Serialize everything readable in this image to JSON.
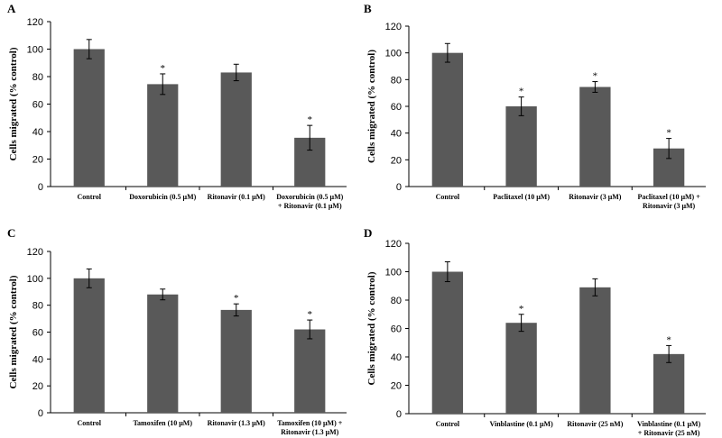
{
  "chart_data": [
    {
      "panel": "A",
      "type": "bar",
      "ylabel": "Cells migrated  (% control)",
      "ylim": [
        0,
        120
      ],
      "yticks": [
        0,
        20,
        40,
        60,
        80,
        100,
        120
      ],
      "categories": [
        [
          "Control"
        ],
        [
          "Doxorubicin (0.5 μM)"
        ],
        [
          "Ritonavir (0.1 μM)"
        ],
        [
          "Doxorubicin (0.5 μM)",
          "+ Ritonavir (0.1 μM)"
        ]
      ],
      "values": [
        100,
        74.5,
        83,
        35.5
      ],
      "errors": [
        7,
        7.5,
        6,
        9
      ],
      "significant": [
        false,
        true,
        false,
        true
      ],
      "marker": "*",
      "bar_color": "#595959"
    },
    {
      "panel": "B",
      "type": "bar",
      "ylabel": "Cells migrated  (% control)",
      "ylim": [
        0,
        120
      ],
      "yticks": [
        0,
        20,
        40,
        60,
        80,
        100,
        120
      ],
      "categories": [
        [
          "Control"
        ],
        [
          "Paclitaxel (10 μM)"
        ],
        [
          "Ritonavir (3 μM)"
        ],
        [
          "Paclitaxel (10 μM) +",
          "Ritonavir (3 μM)"
        ]
      ],
      "values": [
        100,
        60,
        74.5,
        28.5
      ],
      "errors": [
        7,
        7,
        4,
        7.5
      ],
      "significant": [
        false,
        true,
        true,
        true
      ],
      "marker": "*",
      "bar_color": "#595959"
    },
    {
      "panel": "C",
      "type": "bar",
      "ylabel": "Cells migrated  (% control)",
      "ylim": [
        0,
        120
      ],
      "yticks": [
        0,
        20,
        40,
        60,
        80,
        100,
        120
      ],
      "categories": [
        [
          "Control"
        ],
        [
          "Tamoxifen (10 μM)"
        ],
        [
          "Ritonavir (1.3 μM)"
        ],
        [
          "Tamoxifen (10 μM) +",
          "Ritonavir (1.3 μM)"
        ]
      ],
      "values": [
        100,
        88,
        76.5,
        62
      ],
      "errors": [
        7,
        4,
        4.5,
        7
      ],
      "significant": [
        false,
        false,
        true,
        true
      ],
      "marker": "*",
      "bar_color": "#595959"
    },
    {
      "panel": "D",
      "type": "bar",
      "ylabel": "Cells migrated  (% control)",
      "ylim": [
        0,
        120
      ],
      "yticks": [
        0,
        20,
        40,
        60,
        80,
        100,
        120
      ],
      "categories": [
        [
          "Control"
        ],
        [
          "Vinblastine (0.1 μM)"
        ],
        [
          "Ritonavir (25 nM)"
        ],
        [
          "Vinblastine (0.1 μM)",
          "+ Ritonavir (25 nM)"
        ]
      ],
      "values": [
        100,
        64,
        89,
        42
      ],
      "errors": [
        7,
        6,
        6,
        6
      ],
      "significant": [
        false,
        true,
        false,
        true
      ],
      "marker": "*",
      "bar_color": "#595959"
    }
  ]
}
